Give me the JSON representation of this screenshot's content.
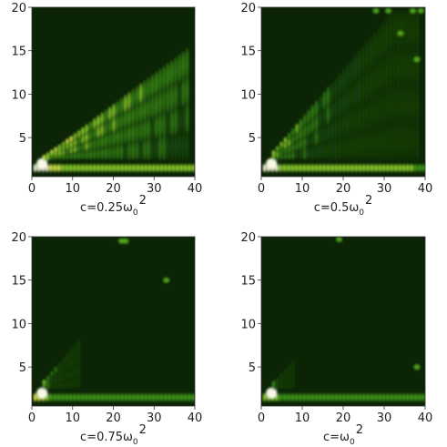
{
  "chart_data": [
    {
      "type": "heatmap",
      "caption": {
        "base": "c=0.25ω",
        "sub": "0",
        "sup": "2"
      },
      "xlim": [
        0,
        40
      ],
      "ylim": [
        0.5,
        20
      ],
      "xticks": [
        "0",
        "10",
        "20",
        "30",
        "40"
      ],
      "yticks": [
        "5",
        "10",
        "15",
        "20"
      ],
      "slope": 0.35,
      "blob_strength": 0.9,
      "fade": 0.02,
      "top_blobs": []
    },
    {
      "type": "heatmap",
      "caption": {
        "base": "c=0.5ω",
        "sub": "0",
        "sup": "2"
      },
      "xlim": [
        0,
        40
      ],
      "ylim": [
        0.5,
        20
      ],
      "xticks": [
        "0",
        "10",
        "20",
        "30",
        "40"
      ],
      "yticks": [
        "5",
        "10",
        "15",
        "20"
      ],
      "slope": 0.55,
      "blob_strength": 0.8,
      "fade": 0.06,
      "top_blobs": [
        [
          28,
          19.6
        ],
        [
          31,
          19.6
        ],
        [
          37,
          19.6
        ],
        [
          39,
          19.6
        ],
        [
          34,
          17
        ],
        [
          38,
          14
        ]
      ]
    },
    {
      "type": "heatmap",
      "caption": {
        "base": "c=0.75ω",
        "sub": "0",
        "sup": "2"
      },
      "xlim": [
        0,
        40
      ],
      "ylim": [
        0.5,
        20
      ],
      "xticks": [
        "0",
        "10",
        "20",
        "30",
        "40"
      ],
      "yticks": [
        "5",
        "10",
        "15",
        "20"
      ],
      "slope": 0.55,
      "blob_strength": 0.6,
      "fade": 0.25,
      "top_blobs": [
        [
          22,
          19.5
        ],
        [
          23,
          19.5
        ],
        [
          33,
          15
        ]
      ]
    },
    {
      "type": "heatmap",
      "caption": {
        "base": "c=ω",
        "sub": "0",
        "sup": "2"
      },
      "xlim": [
        0,
        40
      ],
      "ylim": [
        0.5,
        20
      ],
      "xticks": [
        "0",
        "10",
        "20",
        "30",
        "40"
      ],
      "yticks": [
        "5",
        "10",
        "15",
        "20"
      ],
      "slope": 0.5,
      "blob_strength": 0.45,
      "fade": 0.4,
      "top_blobs": [
        [
          19,
          19.7
        ],
        [
          38,
          5
        ]
      ]
    }
  ]
}
